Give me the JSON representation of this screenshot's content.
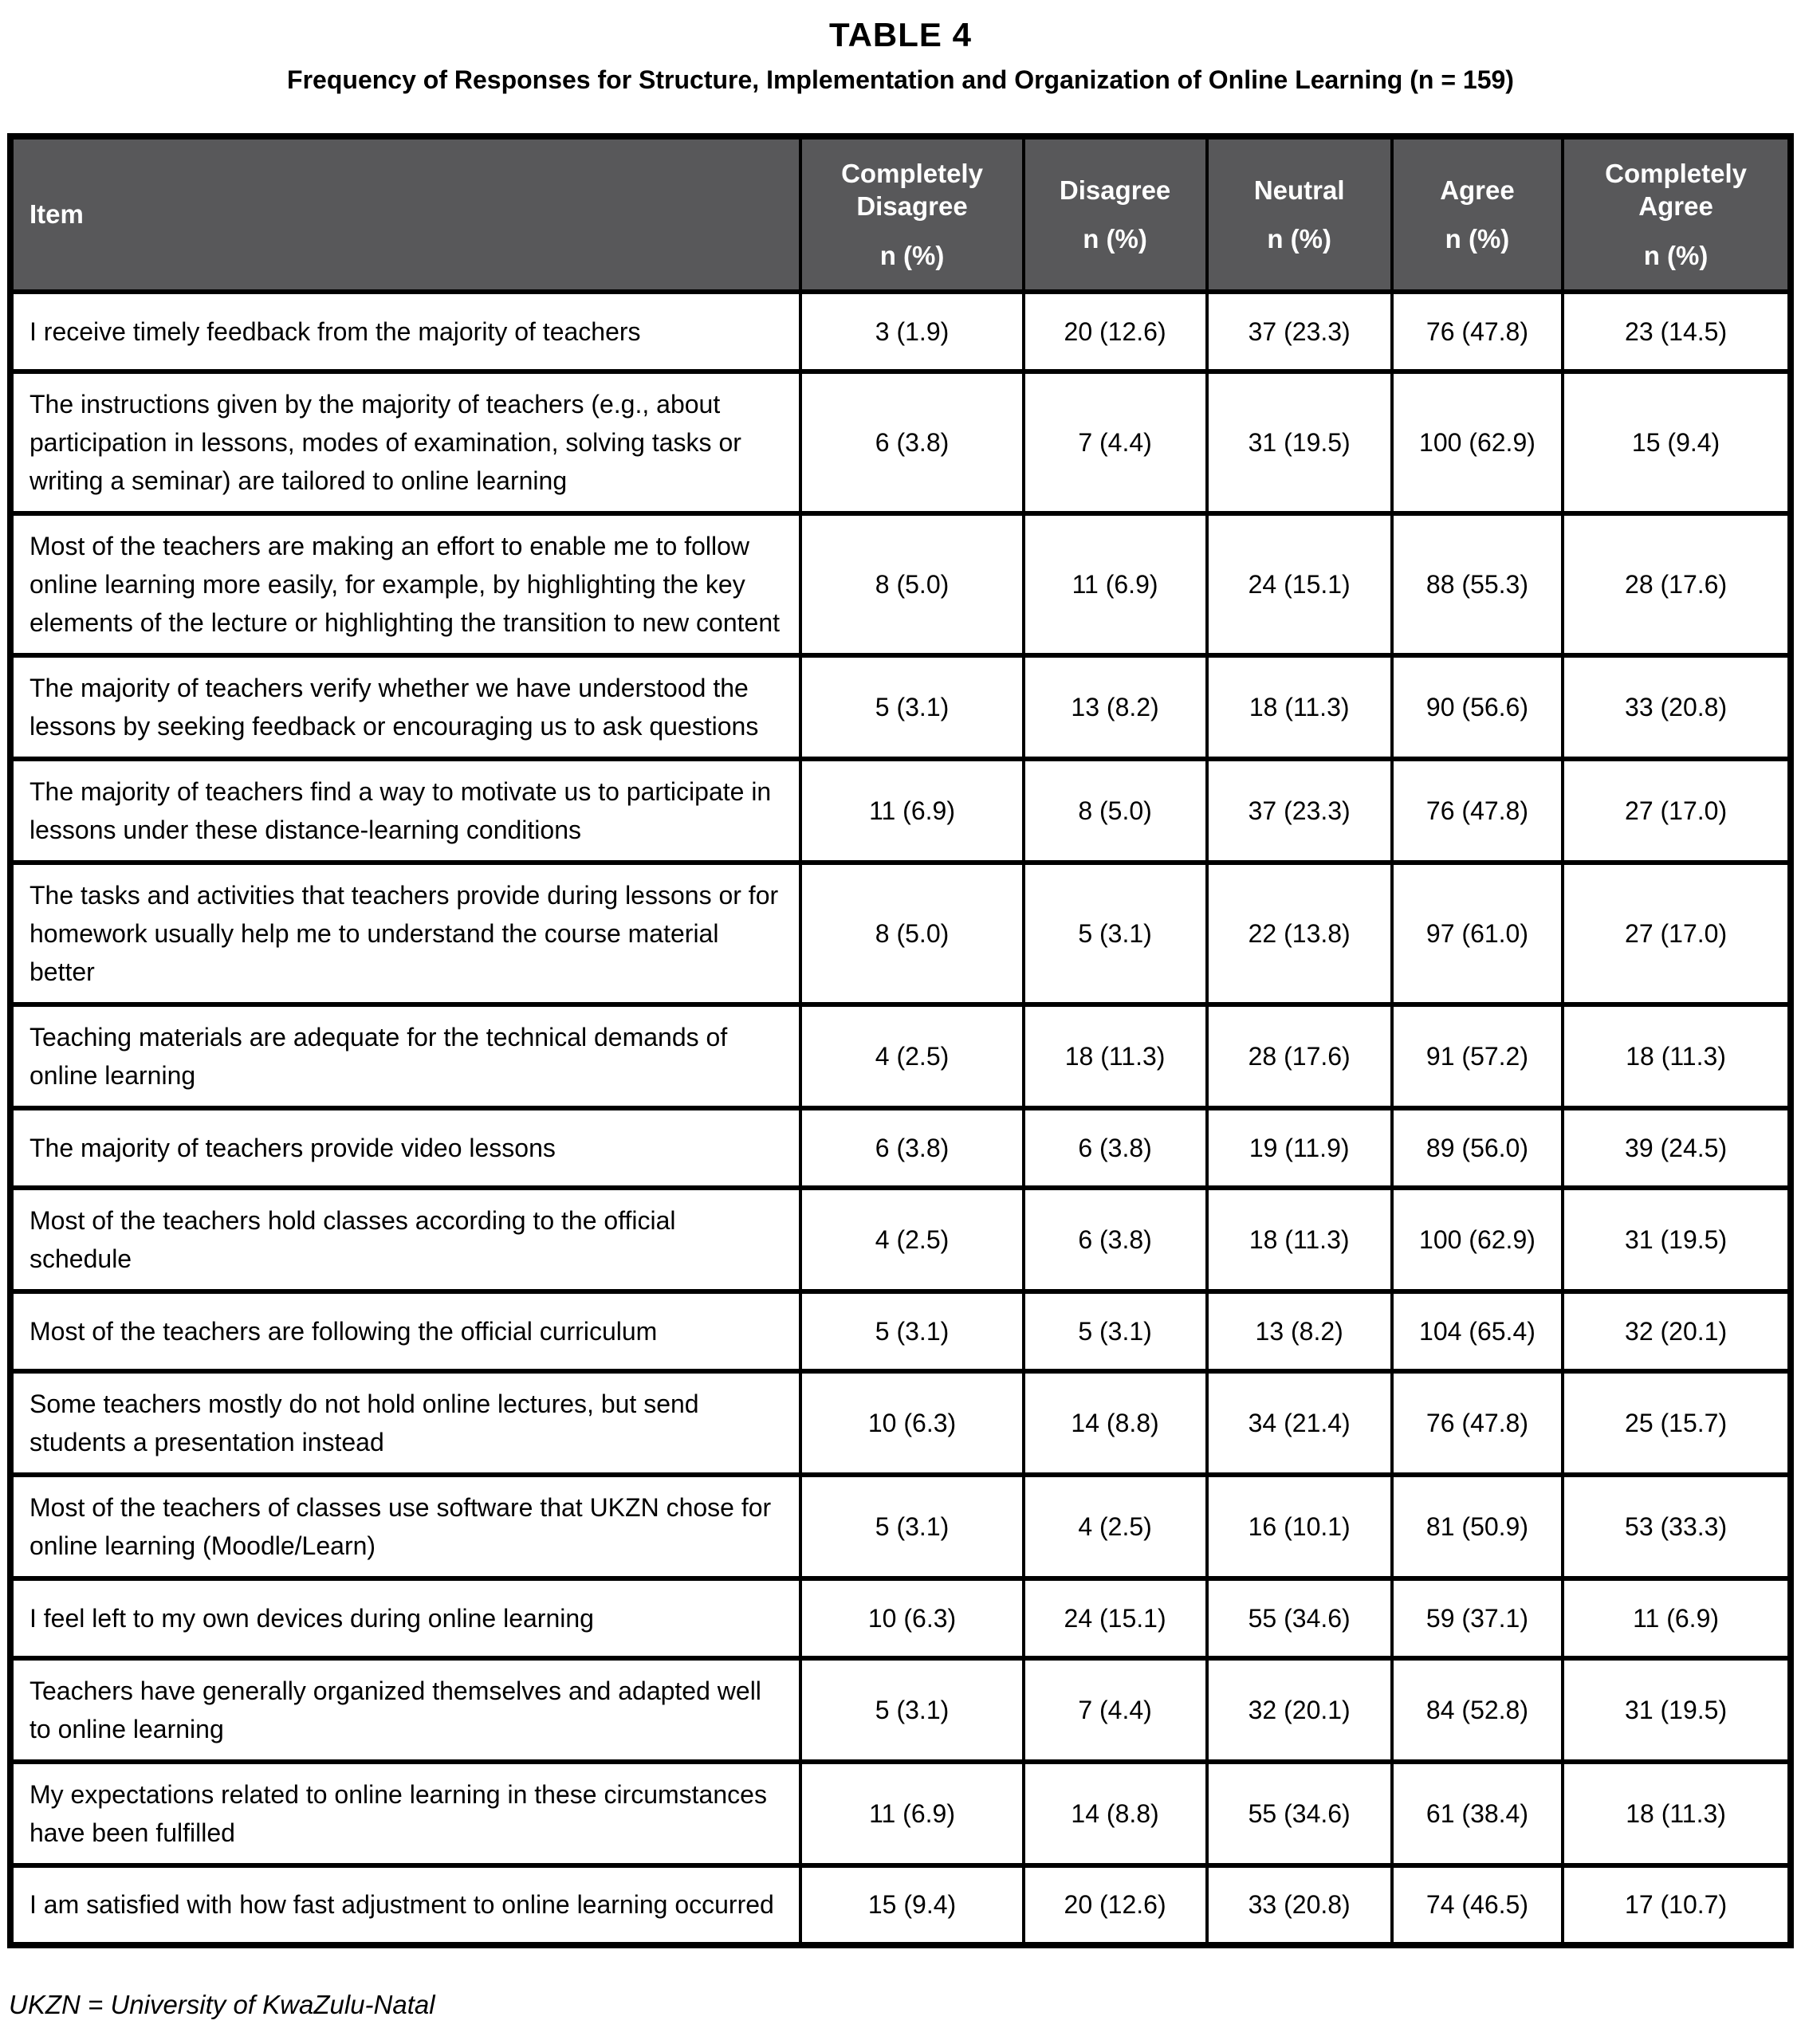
{
  "page": {
    "title": "TABLE 4",
    "subtitle": "Frequency of Responses for Structure, Implementation and Organization of Online Learning (n = 159)",
    "footnote": "UKZN = University of KwaZulu-Natal"
  },
  "colors": {
    "header_bg": "#58585a",
    "header_text": "#ffffff",
    "border": "#000000",
    "body_text": "#000000",
    "page_bg": "#ffffff"
  },
  "table": {
    "columns": [
      {
        "label": "Item",
        "sub": ""
      },
      {
        "label": "Completely Disagree",
        "sub": "n (%)"
      },
      {
        "label": "Disagree",
        "sub": "n (%)"
      },
      {
        "label": "Neutral",
        "sub": "n (%)"
      },
      {
        "label": "Agree",
        "sub": "n (%)"
      },
      {
        "label": "Completely Agree",
        "sub": "n (%)"
      }
    ],
    "rows": [
      {
        "item": "I receive timely feedback from the majority of teachers",
        "values": [
          "3 (1.9)",
          "20 (12.6)",
          "37 (23.3)",
          "76 (47.8)",
          "23 (14.5)"
        ]
      },
      {
        "item": "The instructions given by the majority of teachers (e.g., about participation in lessons, modes of examination, solving tasks or writing a seminar) are tailored to online learning",
        "values": [
          "6 (3.8)",
          "7 (4.4)",
          "31 (19.5)",
          "100 (62.9)",
          "15 (9.4)"
        ]
      },
      {
        "item": "Most of the teachers are making an effort to enable me to follow online learning more easily, for example, by highlighting the key elements of the lecture or highlighting the transition to new content",
        "values": [
          "8 (5.0)",
          "11 (6.9)",
          "24 (15.1)",
          "88 (55.3)",
          "28 (17.6)"
        ]
      },
      {
        "item": "The majority of teachers verify whether we have understood the lessons by seeking feedback or encouraging us to ask questions",
        "values": [
          "5 (3.1)",
          "13 (8.2)",
          "18 (11.3)",
          "90 (56.6)",
          "33 (20.8)"
        ]
      },
      {
        "item": "The majority of teachers find a way to motivate us to participate in lessons under these distance-learning conditions",
        "values": [
          "11 (6.9)",
          "8 (5.0)",
          "37 (23.3)",
          "76 (47.8)",
          "27 (17.0)"
        ]
      },
      {
        "item": "The tasks and activities that teachers provide during lessons or for homework usually help me to understand the course material better",
        "values": [
          "8 (5.0)",
          "5 (3.1)",
          "22 (13.8)",
          "97 (61.0)",
          "27 (17.0)"
        ]
      },
      {
        "item": "Teaching materials are adequate for the technical demands of online learning",
        "values": [
          "4 (2.5)",
          "18 (11.3)",
          "28 (17.6)",
          "91 (57.2)",
          "18 (11.3)"
        ]
      },
      {
        "item": "The majority of teachers provide video lessons",
        "values": [
          "6 (3.8)",
          "6 (3.8)",
          "19 (11.9)",
          "89 (56.0)",
          "39 (24.5)"
        ]
      },
      {
        "item": "Most of the teachers hold classes according to the official schedule",
        "values": [
          "4 (2.5)",
          "6 (3.8)",
          "18 (11.3)",
          "100 (62.9)",
          "31 (19.5)"
        ]
      },
      {
        "item": "Most of the teachers are following the official curriculum",
        "values": [
          "5 (3.1)",
          "5 (3.1)",
          "13 (8.2)",
          "104 (65.4)",
          "32 (20.1)"
        ]
      },
      {
        "item": "Some teachers mostly do not hold online lectures, but send students a presentation instead",
        "values": [
          "10 (6.3)",
          "14 (8.8)",
          "34 (21.4)",
          "76 (47.8)",
          "25 (15.7)"
        ]
      },
      {
        "item": "Most of the teachers of classes use software that UKZN chose for online learning (Moodle/Learn)",
        "values": [
          "5 (3.1)",
          "4 (2.5)",
          "16 (10.1)",
          "81 (50.9)",
          "53 (33.3)"
        ]
      },
      {
        "item": "I feel left to my own devices during online learning",
        "values": [
          "10 (6.3)",
          "24 (15.1)",
          "55 (34.6)",
          "59 (37.1)",
          "11 (6.9)"
        ]
      },
      {
        "item": "Teachers have generally organized themselves and adapted well to online learning",
        "values": [
          "5 (3.1)",
          "7 (4.4)",
          "32 (20.1)",
          "84 (52.8)",
          "31 (19.5)"
        ]
      },
      {
        "item": "My expectations related to online learning in these circumstances have been fulfilled",
        "values": [
          "11 (6.9)",
          "14 (8.8)",
          "55 (34.6)",
          "61 (38.4)",
          "18 (11.3)"
        ]
      },
      {
        "item": "I am satisfied with how fast adjustment to online learning occurred",
        "values": [
          "15 (9.4)",
          "20 (12.6)",
          "33 (20.8)",
          "74 (46.5)",
          "17 (10.7)"
        ]
      }
    ]
  },
  "chart_data": {
    "type": "table",
    "title": "TABLE 4 — Frequency of Responses for Structure, Implementation and Organization of Online Learning (n = 159)",
    "columns": [
      "Item",
      "Completely Disagree n (%)",
      "Disagree n (%)",
      "Neutral n (%)",
      "Agree n (%)",
      "Completely Agree n (%)"
    ],
    "note": "UKZN = University of KwaZulu-Natal"
  }
}
